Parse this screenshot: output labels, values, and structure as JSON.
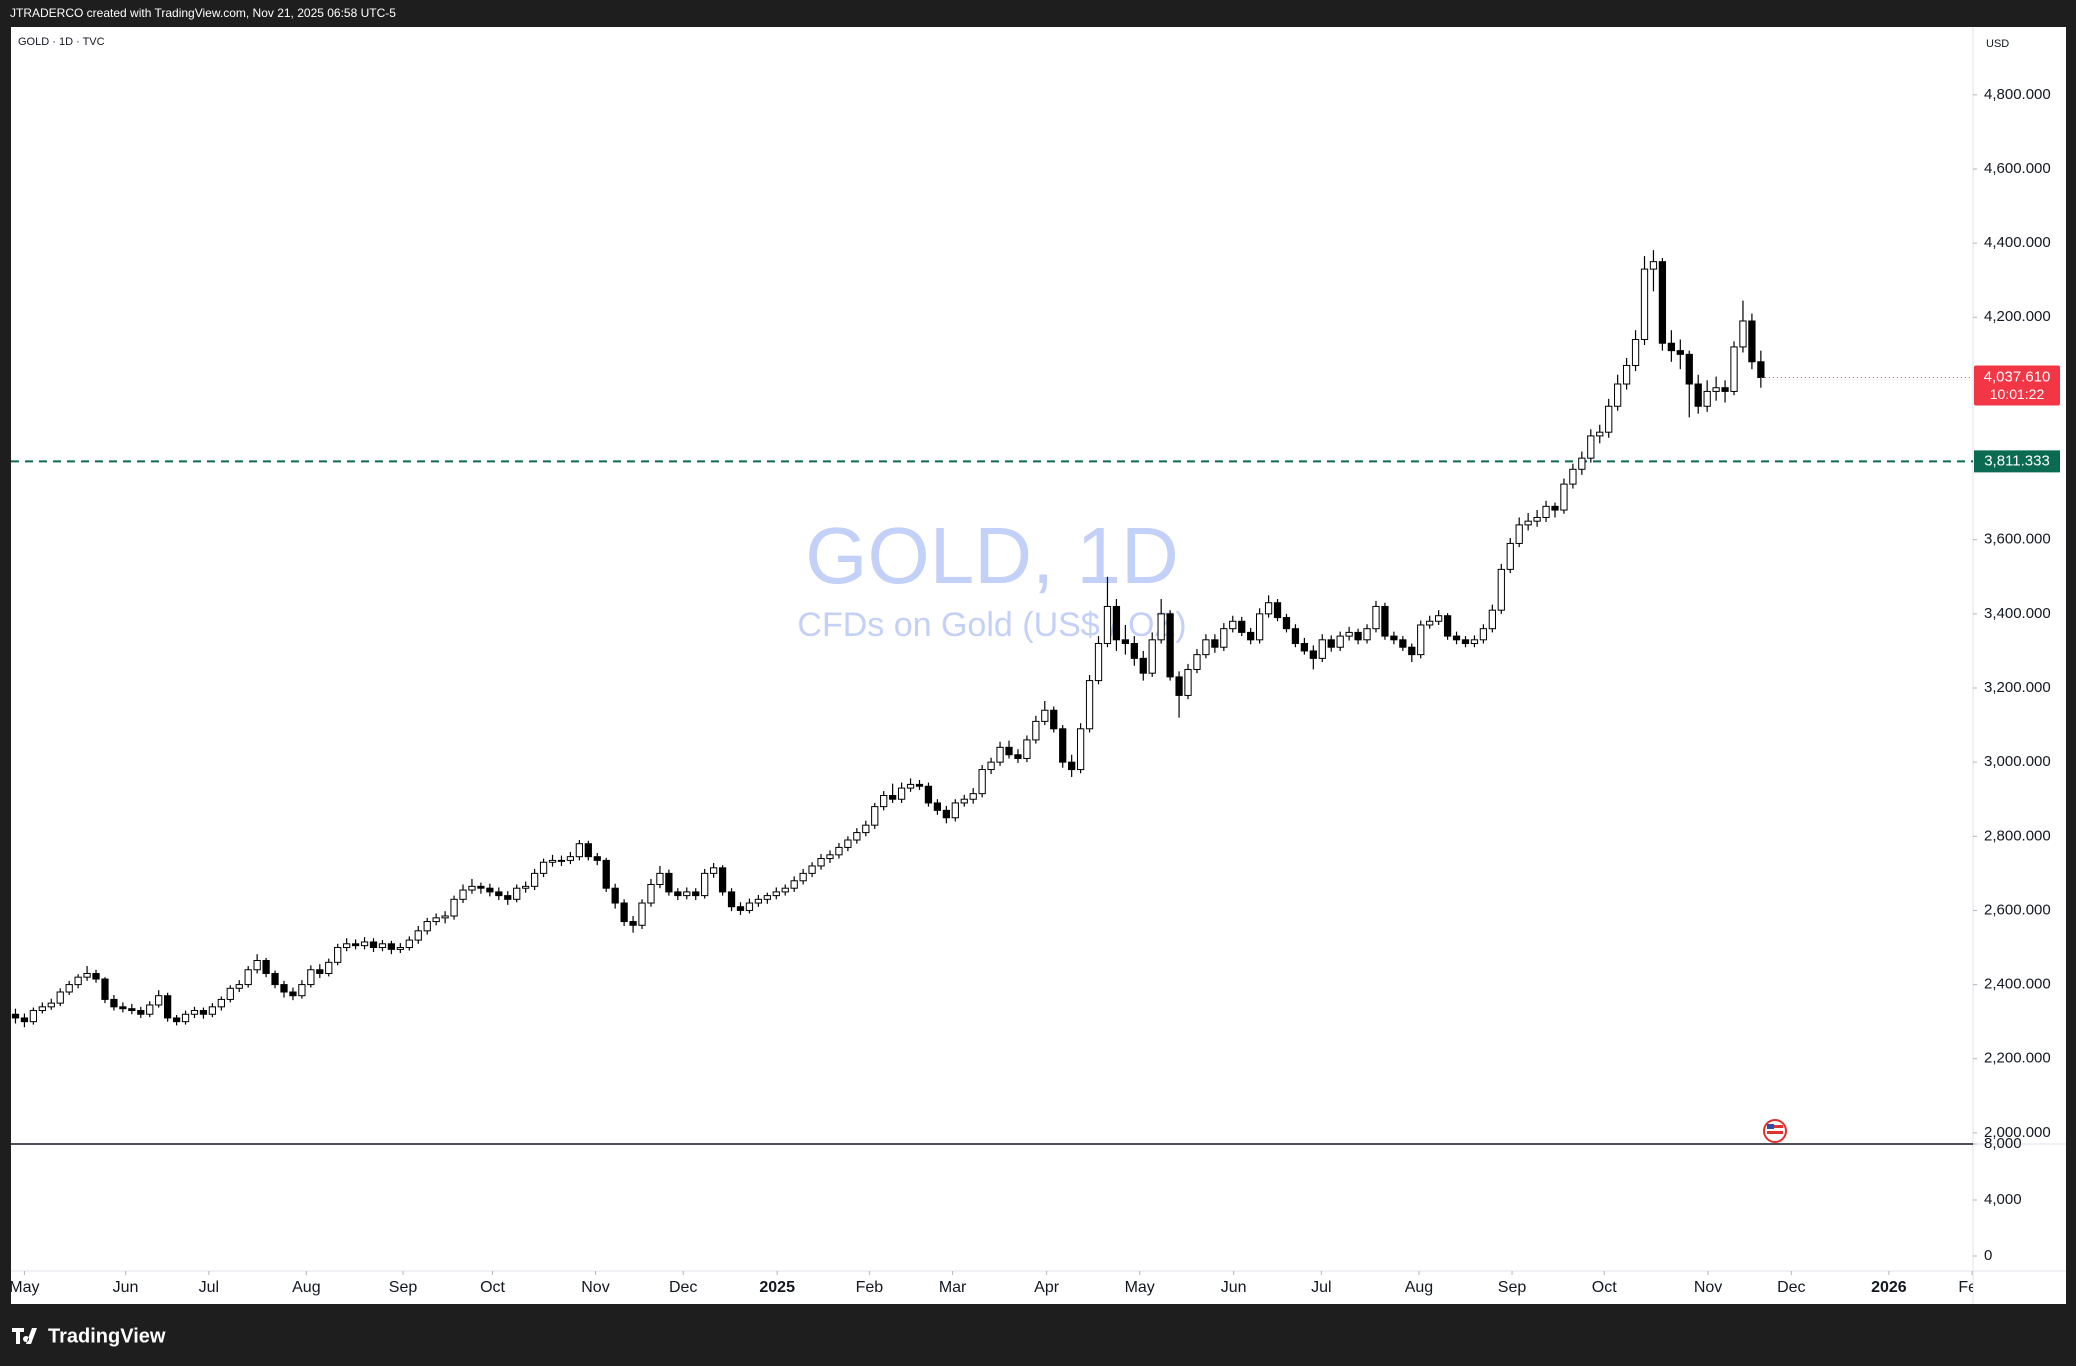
{
  "header": "JTRADERCO created with TradingView.com, Nov 21, 2025 06:58 UTC-5",
  "footer": "TradingView",
  "chart_data": {
    "type": "candlestick",
    "legend": "GOLD · 1D · TVC",
    "currency": "USD",
    "title": "GOLD, 1D",
    "subtitle": "CFDs on Gold (US$ / OZ)",
    "last_price_label": "4,037.610",
    "countdown": "10:01:22",
    "hline": {
      "value": 3811.333,
      "label": "3,811.333",
      "color": "#0a6b52"
    },
    "up_color": "#ffffff",
    "down_color": "#000000",
    "wick_color": "#000000",
    "grid": false,
    "xlim": [
      -0.5,
      218.7
    ],
    "ylim": [
      1970,
      4983
    ],
    "y2lim": [
      -1071,
      8000
    ],
    "yticks": [
      {
        "value": 2000,
        "label": "2,000.000"
      },
      {
        "value": 2200,
        "label": "2,200.000"
      },
      {
        "value": 2400,
        "label": "2,400.000"
      },
      {
        "value": 2600,
        "label": "2,600.000"
      },
      {
        "value": 2800,
        "label": "2,800.000"
      },
      {
        "value": 3000,
        "label": "3,000.000"
      },
      {
        "value": 3200,
        "label": "3,200.000"
      },
      {
        "value": 3400,
        "label": "3,400.000"
      },
      {
        "value": 3600,
        "label": "3,600.000"
      },
      {
        "value": 4200,
        "label": "4,200.000"
      },
      {
        "value": 4400,
        "label": "4,400.000"
      },
      {
        "value": 4600,
        "label": "4,600.000"
      },
      {
        "value": 4800,
        "label": "4,800.000"
      }
    ],
    "y2ticks": [
      {
        "value": 8000,
        "label": "8,000"
      },
      {
        "value": 4000,
        "label": "4,000"
      },
      0
    ],
    "xticks": [
      {
        "value": 1,
        "label": "May"
      },
      {
        "value": 12.3,
        "label": "Jun"
      },
      {
        "value": 21.6,
        "label": "Jul"
      },
      {
        "value": 32.5,
        "label": "Aug"
      },
      {
        "value": 43.3,
        "label": "Sep"
      },
      {
        "value": 53.3,
        "label": "Oct"
      },
      {
        "value": 64.8,
        "label": "Nov"
      },
      {
        "value": 74.6,
        "label": "Dec"
      },
      {
        "value": 85.1,
        "label": "2025"
      },
      {
        "value": 95.4,
        "label": "Feb"
      },
      {
        "value": 104.7,
        "label": "Mar"
      },
      {
        "value": 115.2,
        "label": "Apr"
      },
      {
        "value": 125.6,
        "label": "May"
      },
      {
        "value": 136.1,
        "label": "Jun"
      },
      {
        "value": 145.9,
        "label": "Jul"
      },
      {
        "value": 156.8,
        "label": "Aug"
      },
      {
        "value": 167.2,
        "label": "Sep"
      },
      {
        "value": 177.5,
        "label": "Oct"
      },
      {
        "value": 189.1,
        "label": "Nov"
      },
      {
        "value": 198.4,
        "label": "Dec"
      },
      {
        "value": 209.3,
        "label": "2026"
      },
      {
        "value": 218.6,
        "label": "Feb"
      }
    ],
    "candles": [
      [
        2320,
        2335,
        2295,
        2310
      ],
      [
        2310,
        2322,
        2285,
        2300
      ],
      [
        2300,
        2338,
        2292,
        2330
      ],
      [
        2330,
        2352,
        2322,
        2340
      ],
      [
        2340,
        2362,
        2332,
        2350
      ],
      [
        2350,
        2390,
        2342,
        2380
      ],
      [
        2380,
        2410,
        2372,
        2400
      ],
      [
        2400,
        2428,
        2390,
        2420
      ],
      [
        2420,
        2450,
        2410,
        2430
      ],
      [
        2430,
        2440,
        2405,
        2415
      ],
      [
        2415,
        2420,
        2350,
        2360
      ],
      [
        2360,
        2372,
        2330,
        2340
      ],
      [
        2340,
        2352,
        2325,
        2335
      ],
      [
        2335,
        2348,
        2320,
        2330
      ],
      [
        2330,
        2340,
        2310,
        2320
      ],
      [
        2320,
        2355,
        2312,
        2345
      ],
      [
        2345,
        2385,
        2338,
        2370
      ],
      [
        2370,
        2378,
        2300,
        2310
      ],
      [
        2310,
        2318,
        2290,
        2300
      ],
      [
        2300,
        2330,
        2292,
        2320
      ],
      [
        2320,
        2340,
        2310,
        2330
      ],
      [
        2330,
        2338,
        2308,
        2320
      ],
      [
        2320,
        2350,
        2312,
        2340
      ],
      [
        2340,
        2368,
        2330,
        2360
      ],
      [
        2360,
        2398,
        2352,
        2390
      ],
      [
        2390,
        2412,
        2380,
        2400
      ],
      [
        2400,
        2450,
        2392,
        2440
      ],
      [
        2440,
        2482,
        2430,
        2465
      ],
      [
        2465,
        2472,
        2420,
        2430
      ],
      [
        2430,
        2438,
        2390,
        2400
      ],
      [
        2400,
        2410,
        2365,
        2380
      ],
      [
        2380,
        2392,
        2358,
        2370
      ],
      [
        2370,
        2412,
        2362,
        2400
      ],
      [
        2400,
        2452,
        2392,
        2440
      ],
      [
        2440,
        2455,
        2418,
        2430
      ],
      [
        2430,
        2470,
        2422,
        2460
      ],
      [
        2460,
        2510,
        2452,
        2500
      ],
      [
        2500,
        2525,
        2490,
        2510
      ],
      [
        2510,
        2522,
        2495,
        2505
      ],
      [
        2505,
        2528,
        2495,
        2515
      ],
      [
        2515,
        2525,
        2488,
        2500
      ],
      [
        2500,
        2520,
        2490,
        2510
      ],
      [
        2510,
        2518,
        2482,
        2495
      ],
      [
        2495,
        2512,
        2485,
        2500
      ],
      [
        2500,
        2530,
        2492,
        2520
      ],
      [
        2520,
        2558,
        2510,
        2545
      ],
      [
        2545,
        2580,
        2535,
        2570
      ],
      [
        2570,
        2592,
        2560,
        2580
      ],
      [
        2580,
        2598,
        2565,
        2585
      ],
      [
        2585,
        2640,
        2575,
        2630
      ],
      [
        2630,
        2670,
        2620,
        2655
      ],
      [
        2655,
        2685,
        2645,
        2665
      ],
      [
        2665,
        2675,
        2645,
        2660
      ],
      [
        2660,
        2672,
        2638,
        2650
      ],
      [
        2650,
        2662,
        2628,
        2640
      ],
      [
        2640,
        2652,
        2615,
        2630
      ],
      [
        2630,
        2670,
        2622,
        2660
      ],
      [
        2660,
        2678,
        2648,
        2665
      ],
      [
        2665,
        2712,
        2655,
        2700
      ],
      [
        2700,
        2740,
        2690,
        2730
      ],
      [
        2730,
        2750,
        2718,
        2735
      ],
      [
        2735,
        2748,
        2720,
        2735
      ],
      [
        2735,
        2758,
        2725,
        2745
      ],
      [
        2745,
        2790,
        2735,
        2780
      ],
      [
        2780,
        2788,
        2735,
        2745
      ],
      [
        2745,
        2755,
        2722,
        2735
      ],
      [
        2735,
        2742,
        2650,
        2660
      ],
      [
        2660,
        2672,
        2605,
        2620
      ],
      [
        2620,
        2630,
        2558,
        2570
      ],
      [
        2570,
        2585,
        2540,
        2560
      ],
      [
        2560,
        2630,
        2550,
        2620
      ],
      [
        2620,
        2685,
        2610,
        2670
      ],
      [
        2670,
        2720,
        2660,
        2700
      ],
      [
        2700,
        2710,
        2640,
        2650
      ],
      [
        2650,
        2660,
        2628,
        2640
      ],
      [
        2640,
        2662,
        2630,
        2650
      ],
      [
        2650,
        2660,
        2628,
        2640
      ],
      [
        2640,
        2712,
        2632,
        2700
      ],
      [
        2700,
        2728,
        2688,
        2715
      ],
      [
        2715,
        2722,
        2640,
        2650
      ],
      [
        2650,
        2660,
        2598,
        2610
      ],
      [
        2610,
        2622,
        2588,
        2600
      ],
      [
        2600,
        2632,
        2592,
        2620
      ],
      [
        2620,
        2642,
        2610,
        2630
      ],
      [
        2630,
        2648,
        2618,
        2640
      ],
      [
        2640,
        2662,
        2630,
        2650
      ],
      [
        2650,
        2670,
        2640,
        2660
      ],
      [
        2660,
        2692,
        2650,
        2680
      ],
      [
        2680,
        2712,
        2670,
        2700
      ],
      [
        2700,
        2730,
        2690,
        2720
      ],
      [
        2720,
        2752,
        2710,
        2740
      ],
      [
        2740,
        2762,
        2728,
        2750
      ],
      [
        2750,
        2782,
        2740,
        2770
      ],
      [
        2770,
        2800,
        2760,
        2790
      ],
      [
        2790,
        2822,
        2780,
        2810
      ],
      [
        2810,
        2842,
        2800,
        2830
      ],
      [
        2830,
        2890,
        2820,
        2880
      ],
      [
        2880,
        2922,
        2870,
        2910
      ],
      [
        2910,
        2942,
        2890,
        2900
      ],
      [
        2900,
        2945,
        2890,
        2930
      ],
      [
        2930,
        2956,
        2920,
        2940
      ],
      [
        2940,
        2952,
        2925,
        2935
      ],
      [
        2935,
        2945,
        2880,
        2890
      ],
      [
        2890,
        2900,
        2858,
        2870
      ],
      [
        2870,
        2882,
        2835,
        2850
      ],
      [
        2850,
        2900,
        2840,
        2890
      ],
      [
        2890,
        2912,
        2880,
        2900
      ],
      [
        2900,
        2930,
        2888,
        2915
      ],
      [
        2915,
        2992,
        2905,
        2980
      ],
      [
        2980,
        3012,
        2968,
        3000
      ],
      [
        3000,
        3055,
        2990,
        3040
      ],
      [
        3040,
        3058,
        3010,
        3020
      ],
      [
        3020,
        3035,
        2998,
        3010
      ],
      [
        3010,
        3072,
        3000,
        3060
      ],
      [
        3060,
        3125,
        3050,
        3110
      ],
      [
        3110,
        3165,
        3100,
        3140
      ],
      [
        3140,
        3150,
        3080,
        3090
      ],
      [
        3090,
        3100,
        2985,
        3000
      ],
      [
        3000,
        3020,
        2960,
        2980
      ],
      [
        2980,
        3105,
        2970,
        3090
      ],
      [
        3090,
        3235,
        3080,
        3220
      ],
      [
        3220,
        3340,
        3210,
        3320
      ],
      [
        3320,
        3500,
        3310,
        3420
      ],
      [
        3420,
        3440,
        3300,
        3330
      ],
      [
        3330,
        3370,
        3290,
        3320
      ],
      [
        3320,
        3340,
        3260,
        3280
      ],
      [
        3280,
        3300,
        3220,
        3240
      ],
      [
        3240,
        3350,
        3230,
        3330
      ],
      [
        3330,
        3440,
        3320,
        3400
      ],
      [
        3400,
        3410,
        3220,
        3230
      ],
      [
        3230,
        3245,
        3120,
        3180
      ],
      [
        3180,
        3265,
        3170,
        3250
      ],
      [
        3250,
        3305,
        3240,
        3290
      ],
      [
        3290,
        3345,
        3280,
        3330
      ],
      [
        3330,
        3345,
        3295,
        3310
      ],
      [
        3310,
        3375,
        3300,
        3360
      ],
      [
        3360,
        3395,
        3350,
        3380
      ],
      [
        3380,
        3392,
        3340,
        3350
      ],
      [
        3350,
        3362,
        3318,
        3330
      ],
      [
        3330,
        3415,
        3320,
        3400
      ],
      [
        3400,
        3450,
        3390,
        3430
      ],
      [
        3430,
        3440,
        3380,
        3390
      ],
      [
        3390,
        3400,
        3350,
        3360
      ],
      [
        3360,
        3372,
        3310,
        3320
      ],
      [
        3320,
        3335,
        3290,
        3300
      ],
      [
        3300,
        3315,
        3250,
        3280
      ],
      [
        3280,
        3345,
        3270,
        3330
      ],
      [
        3330,
        3342,
        3298,
        3310
      ],
      [
        3310,
        3352,
        3300,
        3340
      ],
      [
        3340,
        3365,
        3328,
        3350
      ],
      [
        3350,
        3360,
        3318,
        3330
      ],
      [
        3330,
        3372,
        3320,
        3360
      ],
      [
        3360,
        3435,
        3350,
        3420
      ],
      [
        3420,
        3430,
        3330,
        3340
      ],
      [
        3340,
        3352,
        3318,
        3330
      ],
      [
        3330,
        3340,
        3300,
        3310
      ],
      [
        3310,
        3320,
        3270,
        3290
      ],
      [
        3290,
        3382,
        3280,
        3370
      ],
      [
        3370,
        3395,
        3360,
        3380
      ],
      [
        3380,
        3410,
        3370,
        3395
      ],
      [
        3395,
        3402,
        3330,
        3340
      ],
      [
        3340,
        3352,
        3318,
        3330
      ],
      [
        3330,
        3340,
        3310,
        3320
      ],
      [
        3320,
        3342,
        3310,
        3330
      ],
      [
        3330,
        3372,
        3320,
        3360
      ],
      [
        3360,
        3425,
        3350,
        3410
      ],
      [
        3410,
        3535,
        3400,
        3520
      ],
      [
        3520,
        3605,
        3510,
        3590
      ],
      [
        3590,
        3660,
        3580,
        3640
      ],
      [
        3640,
        3672,
        3625,
        3650
      ],
      [
        3650,
        3680,
        3635,
        3660
      ],
      [
        3660,
        3705,
        3648,
        3690
      ],
      [
        3690,
        3700,
        3660,
        3680
      ],
      [
        3680,
        3765,
        3670,
        3750
      ],
      [
        3750,
        3805,
        3738,
        3790
      ],
      [
        3790,
        3838,
        3775,
        3820
      ],
      [
        3820,
        3898,
        3808,
        3880
      ],
      [
        3880,
        3910,
        3860,
        3890
      ],
      [
        3890,
        3980,
        3875,
        3960
      ],
      [
        3960,
        4045,
        3948,
        4020
      ],
      [
        4020,
        4090,
        4005,
        4070
      ],
      [
        4070,
        4165,
        4055,
        4140
      ],
      [
        4140,
        4365,
        4125,
        4330
      ],
      [
        4330,
        4381,
        4270,
        4350
      ],
      [
        4350,
        4360,
        4110,
        4130
      ],
      [
        4130,
        4165,
        4080,
        4110
      ],
      [
        4110,
        4140,
        4060,
        4100
      ],
      [
        4100,
        4110,
        3930,
        4020
      ],
      [
        4020,
        4045,
        3940,
        3960
      ],
      [
        3960,
        4030,
        3945,
        4000
      ],
      [
        4000,
        4040,
        3975,
        4010
      ],
      [
        4010,
        4030,
        3970,
        4000
      ],
      [
        4000,
        4135,
        3990,
        4120
      ],
      [
        4120,
        4245,
        4105,
        4190
      ],
      [
        4190,
        4210,
        4060,
        4080
      ],
      [
        4080,
        4110,
        4010,
        4037.61
      ]
    ]
  }
}
